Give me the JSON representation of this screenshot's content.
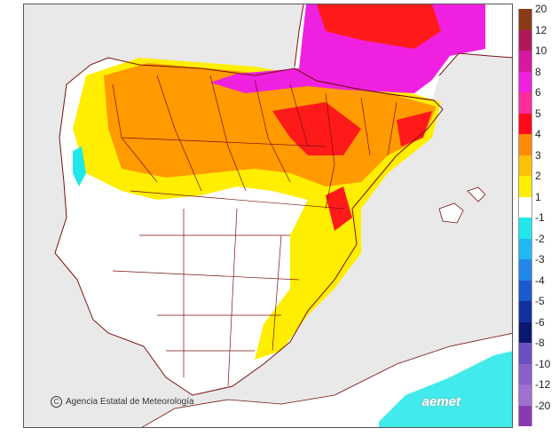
{
  "credit": {
    "icon": "copyright-icon",
    "text": "Agencia Estatal de Meteorología"
  },
  "brand": {
    "text": "aemet"
  },
  "legend": {
    "bins": [
      {
        "label": "20",
        "color": "#8b3a1a"
      },
      {
        "label": "12",
        "color": "#b0185a"
      },
      {
        "label": "10",
        "color": "#d61aa0"
      },
      {
        "label": "8",
        "color": "#f020e0"
      },
      {
        "label": "6",
        "color": "#ff2c9c"
      },
      {
        "label": "5",
        "color": "#ff0a1a"
      },
      {
        "label": "4",
        "color": "#ff8a00"
      },
      {
        "label": "3",
        "color": "#ffc000"
      },
      {
        "label": "2",
        "color": "#ffee00"
      },
      {
        "label": "1",
        "color": "#ffffff"
      },
      {
        "label": "-1",
        "color": "#20e8e8"
      },
      {
        "label": "-2",
        "color": "#20b8f0"
      },
      {
        "label": "-3",
        "color": "#2288e8"
      },
      {
        "label": "-4",
        "color": "#1a5ad0"
      },
      {
        "label": "-5",
        "color": "#1230a0"
      },
      {
        "label": "-6",
        "color": "#0a1870"
      },
      {
        "label": "-8",
        "color": "#6a50c0"
      },
      {
        "label": "-10",
        "color": "#8a60c8"
      },
      {
        "label": "-12",
        "color": "#a070d0"
      },
      {
        "label": "-20",
        "color": "#8a3ab0"
      }
    ]
  },
  "colors": {
    "sea": "#e9e9e9",
    "land": "#ffffff",
    "border": "#7a1010"
  }
}
